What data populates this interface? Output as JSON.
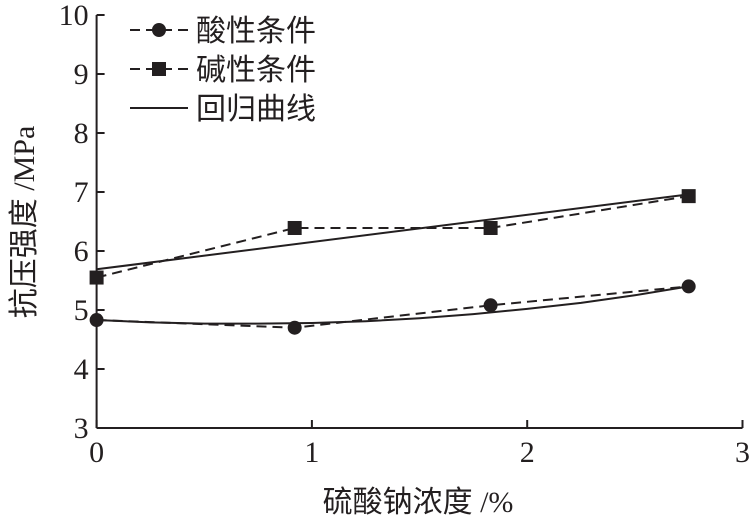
{
  "chart_data": {
    "type": "line",
    "xlabel": "硫酸钠浓度 /%",
    "ylabel": "抗压强度 /MPa",
    "xlim": [
      0,
      3
    ],
    "ylim": [
      3,
      10
    ],
    "xticks": [
      "0",
      "1",
      "2",
      "3"
    ],
    "yticks": [
      "3",
      "4",
      "5",
      "6",
      "7",
      "8",
      "9",
      "10"
    ],
    "grid": false,
    "legend_position": "top-left",
    "series": [
      {
        "name": "酸性条件",
        "style": "dashed",
        "marker": "circle",
        "x": [
          0,
          0.92,
          1.83,
          2.75
        ],
        "y": [
          4.83,
          4.7,
          5.08,
          5.4
        ]
      },
      {
        "name": "碱性条件",
        "style": "dashed",
        "marker": "square",
        "x": [
          0,
          0.92,
          1.83,
          2.75
        ],
        "y": [
          5.55,
          6.39,
          6.39,
          6.93
        ]
      },
      {
        "name": "回归曲线",
        "style": "solid",
        "marker": "none",
        "curves": [
          {
            "x": [
              0,
              0.25,
              0.5,
              0.75,
              1.0,
              1.25,
              1.5,
              1.75,
              2.0,
              2.25,
              2.5,
              2.75
            ],
            "y": [
              4.83,
              4.79,
              4.77,
              4.77,
              4.78,
              4.81,
              4.86,
              4.93,
              5.02,
              5.12,
              5.25,
              5.4
            ]
          },
          {
            "x": [
              0,
              2.75
            ],
            "y": [
              5.69,
              6.96
            ]
          }
        ]
      }
    ]
  }
}
